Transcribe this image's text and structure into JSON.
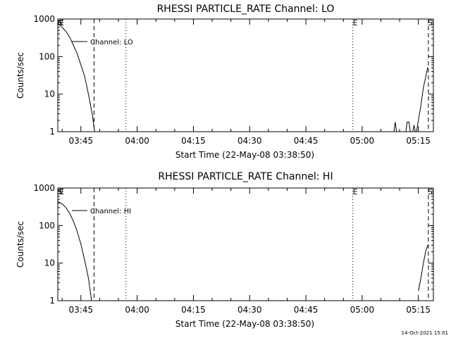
{
  "chart_data": [
    {
      "type": "line",
      "title": "RHESSI PARTICLE_RATE Channel: LO",
      "xlabel": "Start Time (22-May-08 03:38:50)",
      "ylabel": "Counts/sec",
      "yscale": "log",
      "ylim": [
        1,
        1000
      ],
      "xlim": [
        "03:38:50",
        "05:19:00"
      ],
      "ytick_labels": [
        "1",
        "10",
        "100",
        "1000"
      ],
      "xtick_labels": [
        "03:45",
        "04:00",
        "04:15",
        "04:30",
        "04:45",
        "05:00",
        "05:15"
      ],
      "legend": {
        "position": "top-left",
        "entries": [
          "Channel: LO"
        ]
      },
      "series": [
        {
          "name": "Channel: LO",
          "segments": [
            [
              {
                "t": "03:38:50",
                "y": 780
              },
              {
                "t": "03:40:00",
                "y": 600
              },
              {
                "t": "03:41:00",
                "y": 470
              },
              {
                "t": "03:42:00",
                "y": 330
              },
              {
                "t": "03:43:00",
                "y": 200
              },
              {
                "t": "03:44:00",
                "y": 120
              },
              {
                "t": "03:45:00",
                "y": 60
              },
              {
                "t": "03:46:00",
                "y": 30
              },
              {
                "t": "03:47:00",
                "y": 10
              },
              {
                "t": "03:48:00",
                "y": 3
              },
              {
                "t": "03:48:40",
                "y": 1
              }
            ],
            [
              {
                "t": "05:08:30",
                "y": 1
              },
              {
                "t": "05:08:50",
                "y": 1.8
              },
              {
                "t": "05:09:10",
                "y": 1
              }
            ],
            [
              {
                "t": "05:11:40",
                "y": 1
              },
              {
                "t": "05:12:00",
                "y": 1.8
              },
              {
                "t": "05:12:30",
                "y": 1.8
              },
              {
                "t": "05:12:50",
                "y": 1
              }
            ],
            [
              {
                "t": "05:13:30",
                "y": 1
              },
              {
                "t": "05:13:50",
                "y": 1.5
              },
              {
                "t": "05:14:10",
                "y": 1
              }
            ],
            [
              {
                "t": "05:14:30",
                "y": 1
              },
              {
                "t": "05:15:00",
                "y": 2
              },
              {
                "t": "05:15:40",
                "y": 5
              },
              {
                "t": "05:16:20",
                "y": 15
              },
              {
                "t": "05:17:00",
                "y": 30
              },
              {
                "t": "05:17:30",
                "y": 52
              }
            ]
          ]
        }
      ],
      "vlines": [
        {
          "t": "03:48:30",
          "style": "dashed"
        },
        {
          "t": "03:57:00",
          "style": "dotted"
        },
        {
          "t": "04:57:30",
          "style": "dotted"
        },
        {
          "t": "05:17:40",
          "style": "dashed"
        }
      ],
      "markers": [
        {
          "t": "03:38:50",
          "label": "S"
        },
        {
          "t": "03:38:50",
          "label": "E"
        },
        {
          "t": "04:57:30",
          "label": "E"
        },
        {
          "t": "05:17:40",
          "label": "S"
        }
      ]
    },
    {
      "type": "line",
      "title": "RHESSI PARTICLE_RATE Channel: HI",
      "xlabel": "Start Time (22-May-08 03:38:50)",
      "ylabel": "Counts/sec",
      "yscale": "log",
      "ylim": [
        1,
        1000
      ],
      "xlim": [
        "03:38:50",
        "05:19:00"
      ],
      "ytick_labels": [
        "1",
        "10",
        "100",
        "1000"
      ],
      "xtick_labels": [
        "03:45",
        "04:00",
        "04:15",
        "04:30",
        "04:45",
        "05:00",
        "05:15"
      ],
      "legend": {
        "position": "top-left",
        "entries": [
          "Channel: HI"
        ]
      },
      "series": [
        {
          "name": "Channel: HI",
          "segments": [
            [
              {
                "t": "03:38:50",
                "y": 430
              },
              {
                "t": "03:40:00",
                "y": 380
              },
              {
                "t": "03:41:00",
                "y": 300
              },
              {
                "t": "03:42:00",
                "y": 210
              },
              {
                "t": "03:43:00",
                "y": 130
              },
              {
                "t": "03:44:00",
                "y": 70
              },
              {
                "t": "03:45:00",
                "y": 32
              },
              {
                "t": "03:46:00",
                "y": 12
              },
              {
                "t": "03:47:00",
                "y": 4
              },
              {
                "t": "03:47:50",
                "y": 1
              }
            ],
            [
              {
                "t": "05:15:00",
                "y": 1.8
              },
              {
                "t": "05:15:40",
                "y": 4
              },
              {
                "t": "05:16:20",
                "y": 10
              },
              {
                "t": "05:17:00",
                "y": 22
              },
              {
                "t": "05:17:30",
                "y": 30
              }
            ]
          ]
        }
      ],
      "vlines": [
        {
          "t": "03:48:30",
          "style": "dashed"
        },
        {
          "t": "03:57:00",
          "style": "dotted"
        },
        {
          "t": "04:57:30",
          "style": "dotted"
        },
        {
          "t": "05:17:40",
          "style": "dashed"
        }
      ],
      "markers": [
        {
          "t": "03:38:50",
          "label": "S"
        },
        {
          "t": "03:38:50",
          "label": "E"
        },
        {
          "t": "04:57:30",
          "label": "E"
        },
        {
          "t": "05:17:40",
          "label": "S"
        }
      ]
    }
  ],
  "footer": {
    "timestamp": "14-Oct-2021 15:01"
  }
}
